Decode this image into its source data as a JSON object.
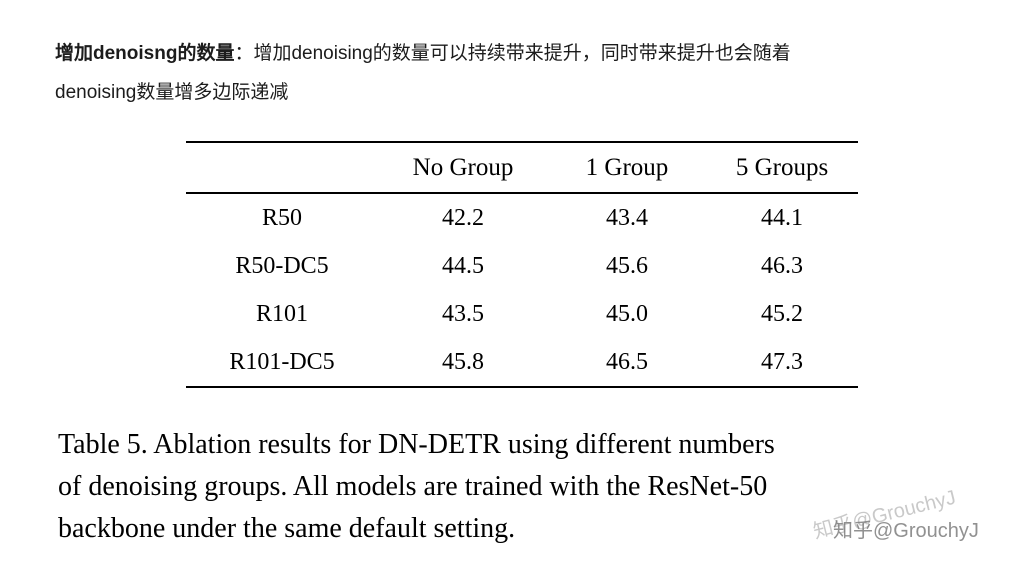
{
  "annotation": {
    "bold": "增加denoisng的数量",
    "line1_rest": "：增加denoising的数量可以持续带来提升，同时带来提升也会随着",
    "line2": "denoising数量增多边际递减"
  },
  "table": {
    "headers": [
      "",
      "No Group",
      "1 Group",
      "5 Groups"
    ],
    "rows": [
      {
        "label": "R50",
        "values": [
          "42.2",
          "43.4",
          "44.1"
        ]
      },
      {
        "label": "R50-DC5",
        "values": [
          "44.5",
          "45.6",
          "46.3"
        ]
      },
      {
        "label": "R101",
        "values": [
          "43.5",
          "45.0",
          "45.2"
        ]
      },
      {
        "label": "R101-DC5",
        "values": [
          "45.8",
          "46.5",
          "47.3"
        ]
      }
    ]
  },
  "caption": {
    "lines": [
      "Table 5.  Ablation results for DN-DETR using different numbers",
      "of denoising groups.  All models are trained with the ResNet-50",
      "backbone under the same default setting."
    ]
  },
  "watermark": {
    "text": "知乎@GrouchyJ"
  },
  "colors": {
    "text": "#1c1c1c",
    "table_text": "#000000",
    "rule": "#000000",
    "watermark": "#8a8a8a",
    "background": "#ffffff"
  }
}
